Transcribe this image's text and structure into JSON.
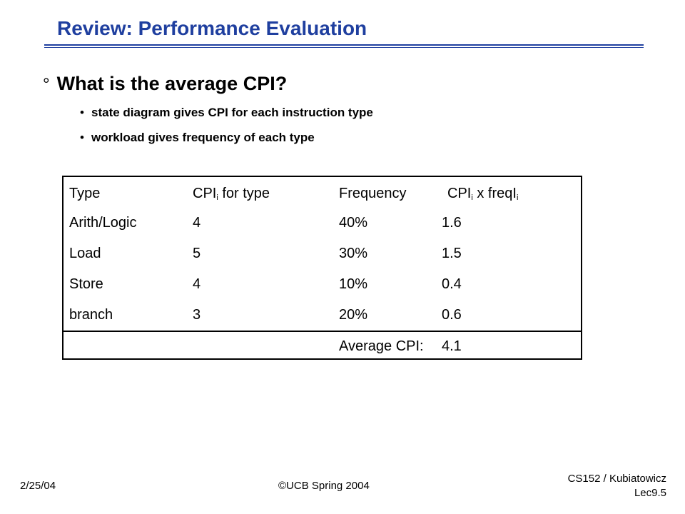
{
  "slide": {
    "title": "Review: Performance Evaluation",
    "main_bullet_mark": "°",
    "main_question": "What is the average CPI?",
    "sub_bullets": [
      "state diagram gives CPI for each instruction type",
      "workload gives frequency of each type"
    ]
  },
  "table": {
    "headers": {
      "type": "Type",
      "cpi_main": "CPI",
      "cpi_sub": "i",
      "cpi_rest": " for type",
      "frequency": "Frequency",
      "product_main": "CPI",
      "product_sub1": "i",
      "product_mid": " x freqI",
      "product_sub2": "i"
    },
    "rows": [
      {
        "type": "Arith/Logic",
        "cpi": "4",
        "frequency": "40%",
        "product": "1.6"
      },
      {
        "type": "Load",
        "cpi": "5",
        "frequency": "30%",
        "product": "1.5"
      },
      {
        "type": "Store",
        "cpi": "4",
        "frequency": "10%",
        "product": "0.4"
      },
      {
        "type": "branch",
        "cpi": "3",
        "frequency": "20%",
        "product": "0.6"
      }
    ],
    "summary_label": "Average CPI:",
    "summary_value": "4.1"
  },
  "footer": {
    "date": "2/25/04",
    "copyright": "©UCB Spring 2004",
    "course": "CS152 / Kubiatowicz",
    "lecture": "Lec9.5"
  }
}
